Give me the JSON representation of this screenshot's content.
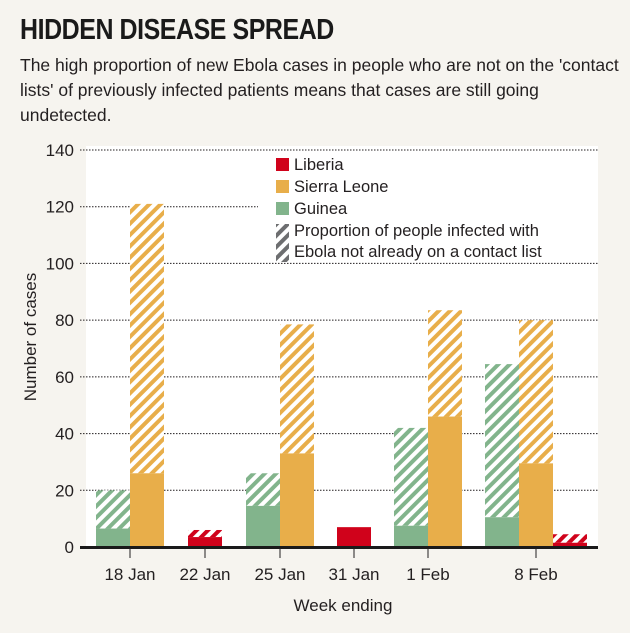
{
  "header": {
    "title": "HIDDEN DISEASE SPREAD",
    "subtitle": "The high proportion of new Ebola cases in people who are not on the 'contact lists' of previously infected patients means that cases are still going undetected."
  },
  "colors": {
    "liberia": "#d0021b",
    "sierra_leone": "#e8ae4a",
    "guinea": "#82b48c",
    "hatch_legend": "#6d6e70",
    "background": "#f6f4ef",
    "plot_background": "#ffffff"
  },
  "chart_data": {
    "type": "bar",
    "stacking": "grouped bars; each bar split into solid (on contact list) and hatched (not on contact list) portion",
    "title": "HIDDEN DISEASE SPREAD",
    "xlabel": "Week ending",
    "ylabel": "Number of cases",
    "ylim": [
      0,
      140
    ],
    "yticks": [
      0,
      20,
      40,
      60,
      80,
      100,
      120,
      140
    ],
    "grid": true,
    "legend_position": "top-right",
    "legend": [
      {
        "key": "liberia",
        "label": "Liberia",
        "style": "solid"
      },
      {
        "key": "sierra_leone",
        "label": "Sierra Leone",
        "style": "solid"
      },
      {
        "key": "guinea",
        "label": "Guinea",
        "style": "solid"
      },
      {
        "key": "hatch",
        "label_lines": [
          "Proportion of people infected with",
          "Ebola not already on a contact list"
        ],
        "style": "hatched"
      }
    ],
    "categories": [
      "18 Jan",
      "22 Jan",
      "25 Jan",
      "31 Jan",
      "1 Feb",
      "8 Feb"
    ],
    "groups": [
      {
        "category": "18 Jan",
        "bars": [
          {
            "series": "guinea",
            "total": 20,
            "on_contact_list": 6.5
          },
          {
            "series": "sierra_leone",
            "total": 121,
            "on_contact_list": 26
          }
        ]
      },
      {
        "category": "22 Jan",
        "bars": [
          {
            "series": "liberia",
            "total": 6,
            "on_contact_list": 3.5
          }
        ]
      },
      {
        "category": "25 Jan",
        "bars": [
          {
            "series": "guinea",
            "total": 26,
            "on_contact_list": 14.5
          },
          {
            "series": "sierra_leone",
            "total": 78.5,
            "on_contact_list": 33
          }
        ]
      },
      {
        "category": "31 Jan",
        "bars": [
          {
            "series": "liberia",
            "total": 7,
            "on_contact_list": 7
          }
        ]
      },
      {
        "category": "1 Feb",
        "bars": [
          {
            "series": "guinea",
            "total": 42,
            "on_contact_list": 7.5
          },
          {
            "series": "sierra_leone",
            "total": 83.5,
            "on_contact_list": 46
          }
        ]
      },
      {
        "category": "8 Feb",
        "bars": [
          {
            "series": "guinea",
            "total": 64.5,
            "on_contact_list": 10.5
          },
          {
            "series": "sierra_leone",
            "total": 80,
            "on_contact_list": 29.5
          },
          {
            "series": "liberia",
            "total": 4.5,
            "on_contact_list": 1.5
          }
        ]
      }
    ]
  }
}
